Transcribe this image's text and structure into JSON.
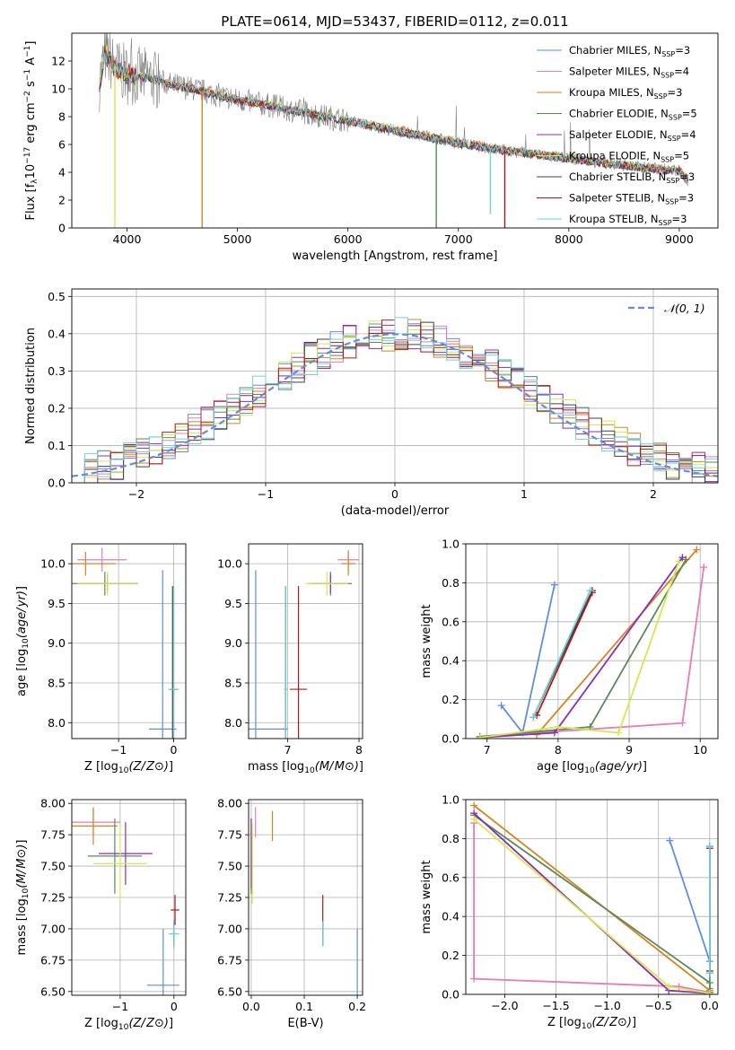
{
  "figure_title": "PLATE=0614, MJD=53437, FIBERID=0112, z=0.011",
  "colors": {
    "Chabrier MILES": "#5e8ee0",
    "Salpeter MILES": "#e87bb8",
    "Kroupa MILES": "#d88322",
    "Chabrier ELODIE": "#5a8a5a",
    "Salpeter ELODIE": "#8b2db5",
    "Kroupa ELODIE": "#d6e84a",
    "Chabrier STELIB": "#404040",
    "Salpeter STELIB": "#b01818",
    "Kroupa STELIB": "#6fd2dc",
    "data": "#7f7f7f"
  },
  "chart_data": [
    {
      "id": "spectrum",
      "type": "line",
      "title": "PLATE=0614, MJD=53437, FIBERID=0112, z=0.011",
      "xlabel": "wavelength [Angstrom, rest frame]",
      "ylabel": "Flux [fλ10⁻¹⁷ erg cm⁻² s⁻¹ A⁻¹]",
      "xlim": [
        3500,
        9350
      ],
      "ylim": [
        0,
        14
      ],
      "xticks": [
        4000,
        5000,
        6000,
        7000,
        8000,
        9000
      ],
      "yticks": [
        0,
        2,
        4,
        6,
        8,
        10,
        12
      ],
      "grid": false,
      "legend_position": "top-right",
      "legend": [
        {
          "label": "Chabrier MILES, N",
          "sub": "SSP",
          "suffix": "=3"
        },
        {
          "label": "Salpeter MILES, N",
          "sub": "SSP",
          "suffix": "=4"
        },
        {
          "label": "Kroupa MILES, N",
          "sub": "SSP",
          "suffix": "=3"
        },
        {
          "label": "Chabrier ELODIE, N",
          "sub": "SSP",
          "suffix": "=5"
        },
        {
          "label": "Salpeter ELODIE, N",
          "sub": "SSP",
          "suffix": "=4"
        },
        {
          "label": "Kroupa ELODIE, N",
          "sub": "SSP",
          "suffix": "=5"
        },
        {
          "label": "Chabrier STELIB, N",
          "sub": "SSP",
          "suffix": "=3"
        },
        {
          "label": "Salpeter STELIB, N",
          "sub": "SSP",
          "suffix": "=3"
        },
        {
          "label": "Kroupa STELIB, N",
          "sub": "SSP",
          "suffix": "=3"
        }
      ],
      "continuum": [
        [
          3750,
          10.5
        ],
        [
          3800,
          12.5
        ],
        [
          3900,
          11.5
        ],
        [
          4000,
          11.0
        ],
        [
          4200,
          10.8
        ],
        [
          4400,
          10.3
        ],
        [
          4600,
          10.0
        ],
        [
          4800,
          9.6
        ],
        [
          5000,
          9.2
        ],
        [
          5300,
          8.8
        ],
        [
          5600,
          8.3
        ],
        [
          6000,
          7.7
        ],
        [
          6500,
          6.9
        ],
        [
          7000,
          6.1
        ],
        [
          7400,
          5.6
        ],
        [
          7800,
          5.2
        ],
        [
          8200,
          4.8
        ],
        [
          8600,
          4.4
        ],
        [
          9000,
          4.1
        ],
        [
          9080,
          3.4
        ]
      ],
      "spikes": [
        [
          3890,
          0
        ],
        [
          4680,
          0
        ],
        [
          6800,
          0
        ],
        [
          7290,
          1.0
        ],
        [
          7420,
          0
        ],
        [
          3980,
          12.0
        ]
      ]
    },
    {
      "id": "residuals",
      "type": "histogram",
      "xlabel": "(data-model)/error",
      "ylabel": "Normed distribution",
      "xlim": [
        -2.5,
        2.5
      ],
      "ylim": [
        0,
        0.52
      ],
      "xticks": [
        -2,
        -1,
        0,
        1,
        2
      ],
      "yticks": [
        0.0,
        0.1,
        0.2,
        0.3,
        0.4,
        0.5
      ],
      "grid": true,
      "legend_position": "top-right",
      "legend": [
        {
          "label": "𝒩(0, 1)"
        }
      ],
      "bin_width": 0.1
    },
    {
      "id": "age_vs_Z",
      "type": "errorbar",
      "xlabel": "Z [log10(Z/Z⊙)]",
      "ylabel": "age  [log10(age/yr)]",
      "xlim": [
        -1.85,
        0.22
      ],
      "ylim": [
        7.8,
        10.25
      ],
      "xticks": [
        -1,
        0
      ],
      "yticks": [
        8.0,
        8.5,
        9.0,
        9.5,
        10.0
      ],
      "grid": true,
      "points": [
        {
          "model": "Chabrier MILES",
          "x": -0.2,
          "y": 7.92,
          "xerr": 0.25,
          "yerr": 2.0
        },
        {
          "model": "Salpeter MILES",
          "x": -1.3,
          "y": 10.05,
          "xerr": 0.45,
          "yerr": 0.15
        },
        {
          "model": "Kroupa MILES",
          "x": -1.6,
          "y": 10.0,
          "xerr": 0.55,
          "yerr": 0.15
        },
        {
          "model": "Chabrier ELODIE",
          "x": -1.25,
          "y": 9.75,
          "xerr": 0.6,
          "yerr": 0.15
        },
        {
          "model": "Salpeter ELODIE",
          "x": -1.2,
          "y": 9.75,
          "xerr": 0.55,
          "yerr": 0.12
        },
        {
          "model": "Kroupa ELODIE",
          "x": -1.2,
          "y": 9.75,
          "xerr": 0.55,
          "yerr": 0.15
        },
        {
          "model": "Chabrier STELIB",
          "x": -0.02,
          "y": 8.42,
          "xerr": 0.05,
          "yerr": 1.3
        },
        {
          "model": "Salpeter STELIB",
          "x": 0.0,
          "y": 8.42,
          "xerr": 0.08,
          "yerr": 1.3
        },
        {
          "model": "Kroupa STELIB",
          "x": 0.0,
          "y": 8.42,
          "xerr": 0.1,
          "yerr": 1.3
        }
      ]
    },
    {
      "id": "age_vs_mass",
      "type": "errorbar",
      "xlabel": "mass [log10(M/M⊙)]",
      "ylabel": "",
      "xlim": [
        6.45,
        8.05
      ],
      "ylim": [
        7.8,
        10.25
      ],
      "xticks": [
        6,
        7,
        8
      ],
      "yticks": [
        8.0,
        8.5,
        9.0,
        9.5,
        10.0
      ],
      "grid": true,
      "points": [
        {
          "model": "Chabrier MILES",
          "x": 6.55,
          "y": 7.92,
          "xerr": 0.45,
          "yerr": 2.0
        },
        {
          "model": "Salpeter MILES",
          "x": 7.85,
          "y": 10.05,
          "xerr": 0.15,
          "yerr": 0.12
        },
        {
          "model": "Kroupa MILES",
          "x": 7.85,
          "y": 10.0,
          "xerr": 0.1,
          "yerr": 0.15
        },
        {
          "model": "Chabrier ELODIE",
          "x": 7.6,
          "y": 9.75,
          "xerr": 0.3,
          "yerr": 0.15
        },
        {
          "model": "Salpeter ELODIE",
          "x": 7.6,
          "y": 9.75,
          "xerr": 0.25,
          "yerr": 0.12
        },
        {
          "model": "Kroupa ELODIE",
          "x": 7.55,
          "y": 9.75,
          "xerr": 0.3,
          "yerr": 0.15
        },
        {
          "model": "Chabrier STELIB",
          "x": 6.97,
          "y": 8.42,
          "xerr": 0.02,
          "yerr": 1.3
        },
        {
          "model": "Salpeter STELIB",
          "x": 7.15,
          "y": 8.42,
          "xerr": 0.12,
          "yerr": 1.3
        },
        {
          "model": "Kroupa STELIB",
          "x": 6.97,
          "y": 8.42,
          "xerr": 0.02,
          "yerr": 1.3
        }
      ]
    },
    {
      "id": "weight_vs_age",
      "type": "line",
      "xlabel": "age  [log10(age/yr)]",
      "ylabel": "mass weight",
      "xlim": [
        6.7,
        10.25
      ],
      "ylim": [
        0,
        1.0
      ],
      "xticks": [
        7,
        8,
        9,
        10
      ],
      "yticks": [
        0.0,
        0.2,
        0.4,
        0.6,
        0.8,
        1.0
      ],
      "grid": true,
      "series": [
        {
          "model": "Chabrier MILES",
          "points": [
            [
              7.2,
              0.17
            ],
            [
              7.5,
              0.03
            ],
            [
              7.95,
              0.79
            ]
          ]
        },
        {
          "model": "Salpeter MILES",
          "points": [
            [
              6.9,
              0.01
            ],
            [
              9.75,
              0.08
            ],
            [
              10.05,
              0.88
            ]
          ]
        },
        {
          "model": "Kroupa MILES",
          "points": [
            [
              7.7,
              0.02
            ],
            [
              9.95,
              0.97
            ]
          ]
        },
        {
          "model": "Chabrier ELODIE",
          "points": [
            [
              6.9,
              0.01
            ],
            [
              8.45,
              0.06
            ],
            [
              9.8,
              0.92
            ]
          ]
        },
        {
          "model": "Salpeter ELODIE",
          "points": [
            [
              6.9,
              0.005
            ],
            [
              7.95,
              0.03
            ],
            [
              9.75,
              0.93
            ]
          ]
        },
        {
          "model": "Kroupa ELODIE",
          "points": [
            [
              6.9,
              0.005
            ],
            [
              8.0,
              0.06
            ],
            [
              8.85,
              0.03
            ],
            [
              9.7,
              0.91
            ]
          ]
        },
        {
          "model": "Chabrier STELIB",
          "points": [
            [
              7.65,
              0.11
            ],
            [
              8.48,
              0.76
            ]
          ]
        },
        {
          "model": "Salpeter STELIB",
          "points": [
            [
              7.7,
              0.12
            ],
            [
              8.48,
              0.75
            ]
          ]
        },
        {
          "model": "Kroupa STELIB",
          "points": [
            [
              7.65,
              0.11
            ],
            [
              8.45,
              0.76
            ]
          ]
        }
      ]
    },
    {
      "id": "mass_vs_Z",
      "type": "errorbar",
      "xlabel": "Z [log10(Z/Z⊙)]",
      "ylabel": "mass [log10(M/M⊙)]",
      "xlim": [
        -1.9,
        0.22
      ],
      "ylim": [
        6.47,
        8.03
      ],
      "xticks": [
        -1,
        0
      ],
      "yticks": [
        6.5,
        6.75,
        7.0,
        7.25,
        7.5,
        7.75,
        8.0
      ],
      "grid": true,
      "points": [
        {
          "model": "Chabrier MILES",
          "x": -0.2,
          "y": 6.55,
          "xerr": 0.3,
          "yerr": 0.45
        },
        {
          "model": "Salpeter MILES",
          "x": -1.5,
          "y": 7.85,
          "xerr": 0.5,
          "yerr": 0.1
        },
        {
          "model": "Kroupa MILES",
          "x": -1.5,
          "y": 7.82,
          "xerr": 0.45,
          "yerr": 0.15
        },
        {
          "model": "Chabrier ELODIE",
          "x": -1.1,
          "y": 7.58,
          "xerr": 0.5,
          "yerr": 0.3
        },
        {
          "model": "Salpeter ELODIE",
          "x": -0.9,
          "y": 7.6,
          "xerr": 0.5,
          "yerr": 0.25
        },
        {
          "model": "Kroupa ELODIE",
          "x": -1.0,
          "y": 7.52,
          "xerr": 0.5,
          "yerr": 0.3
        },
        {
          "model": "Chabrier STELIB",
          "x": 0.0,
          "y": 6.96,
          "xerr": 0.05,
          "yerr": 0.1
        },
        {
          "model": "Salpeter STELIB",
          "x": 0.02,
          "y": 7.15,
          "xerr": 0.08,
          "yerr": 0.12
        },
        {
          "model": "Kroupa STELIB",
          "x": 0.0,
          "y": 6.96,
          "xerr": 0.1,
          "yerr": 0.12
        }
      ]
    },
    {
      "id": "mass_vs_ebv",
      "type": "errorbar",
      "xlabel": "E(B-V)",
      "ylabel": "",
      "xlim": [
        -0.005,
        0.21
      ],
      "ylim": [
        6.47,
        8.03
      ],
      "xticks": [
        0.0,
        0.1,
        0.2
      ],
      "yticks": [
        6.5,
        6.75,
        7.0,
        7.25,
        7.5,
        7.75,
        8.0
      ],
      "grid": true,
      "points": [
        {
          "model": "Chabrier MILES",
          "x": 0.2,
          "y": 6.55,
          "xerr": 0.0,
          "yerr": 0.45
        },
        {
          "model": "Salpeter MILES",
          "x": 0.008,
          "y": 7.85,
          "xerr": 0.0,
          "yerr": 0.12
        },
        {
          "model": "Kroupa MILES",
          "x": 0.04,
          "y": 7.82,
          "xerr": 0.0,
          "yerr": 0.12
        },
        {
          "model": "Chabrier ELODIE",
          "x": 0.0,
          "y": 7.58,
          "xerr": 0.0,
          "yerr": 0.3
        },
        {
          "model": "Salpeter ELODIE",
          "x": 0.0,
          "y": 7.6,
          "xerr": 0.0,
          "yerr": 0.28
        },
        {
          "model": "Kroupa ELODIE",
          "x": 0.002,
          "y": 7.52,
          "xerr": 0.0,
          "yerr": 0.32
        },
        {
          "model": "Chabrier STELIB",
          "x": 0.135,
          "y": 6.96,
          "xerr": 0.0,
          "yerr": 0.1
        },
        {
          "model": "Salpeter STELIB",
          "x": 0.135,
          "y": 7.15,
          "xerr": 0.0,
          "yerr": 0.12
        },
        {
          "model": "Kroupa STELIB",
          "x": 0.135,
          "y": 6.96,
          "xerr": 0.0,
          "yerr": 0.1
        }
      ]
    },
    {
      "id": "weight_vs_Z",
      "type": "line",
      "xlabel": "Z [log10(Z/Z⊙)]",
      "ylabel": "mass weight",
      "xlim": [
        -2.38,
        0.08
      ],
      "ylim": [
        0,
        1.0
      ],
      "xticks": [
        -2.0,
        -1.5,
        -1.0,
        -0.5,
        0.0
      ],
      "yticks": [
        0.0,
        0.2,
        0.4,
        0.6,
        0.8,
        1.0
      ],
      "grid": true,
      "series": [
        {
          "model": "Chabrier MILES",
          "points": [
            [
              -0.39,
              0.79
            ],
            [
              0.0,
              0.17
            ],
            [
              0.0,
              0.03
            ]
          ]
        },
        {
          "model": "Salpeter MILES",
          "points": [
            [
              -2.3,
              0.88
            ],
            [
              -2.3,
              0.08
            ],
            [
              -0.3,
              0.04
            ],
            [
              0.0,
              0.01
            ]
          ]
        },
        {
          "model": "Kroupa MILES",
          "points": [
            [
              -2.3,
              0.97
            ],
            [
              0.0,
              0.02
            ]
          ]
        },
        {
          "model": "Chabrier ELODIE",
          "points": [
            [
              -2.3,
              0.92
            ],
            [
              0.0,
              0.06
            ],
            [
              0.0,
              0.01
            ]
          ]
        },
        {
          "model": "Salpeter ELODIE",
          "points": [
            [
              -2.3,
              0.93
            ],
            [
              -0.4,
              0.02
            ],
            [
              0.0,
              0.005
            ]
          ]
        },
        {
          "model": "Kroupa ELODIE",
          "points": [
            [
              -2.3,
              0.9
            ],
            [
              -0.4,
              0.04
            ],
            [
              0.0,
              0.005
            ]
          ]
        },
        {
          "model": "Chabrier STELIB",
          "points": [
            [
              0.0,
              0.76
            ],
            [
              0.0,
              0.11
            ]
          ]
        },
        {
          "model": "Salpeter STELIB",
          "points": [
            [
              0.0,
              0.75
            ],
            [
              0.0,
              0.12
            ]
          ]
        },
        {
          "model": "Kroupa STELIB",
          "points": [
            [
              0.0,
              0.76
            ],
            [
              0.0,
              0.11
            ]
          ]
        }
      ]
    }
  ]
}
